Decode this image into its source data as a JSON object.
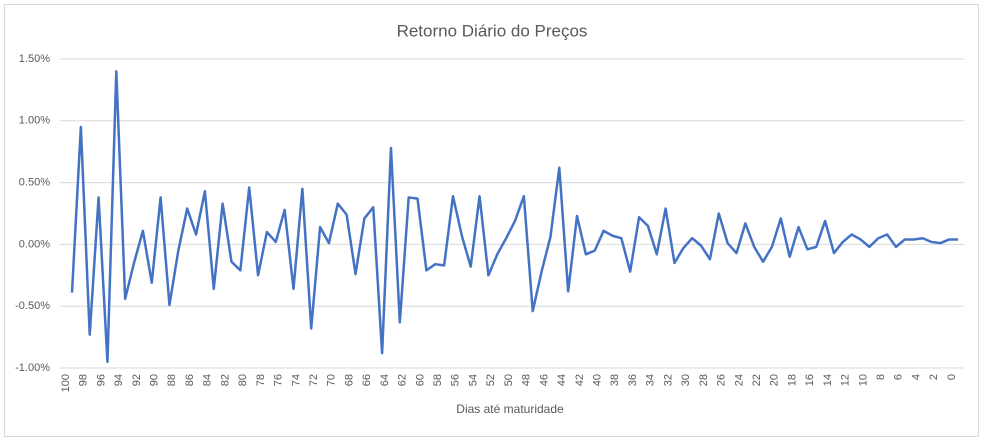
{
  "chart_data": {
    "type": "line",
    "title": "Retorno Diário do Preços",
    "x_label": "Dias até maturidade",
    "categories": [
      "100",
      null,
      "98",
      null,
      "96",
      null,
      "94",
      null,
      "92",
      null,
      "90",
      null,
      "88",
      null,
      "86",
      null,
      "84",
      null,
      "82",
      null,
      "80",
      null,
      "78",
      null,
      "76",
      null,
      "74",
      null,
      "72",
      null,
      "70",
      null,
      "68",
      null,
      "66",
      null,
      "64",
      null,
      "62",
      null,
      "60",
      null,
      "58",
      null,
      "56",
      null,
      "54",
      null,
      "52",
      null,
      "50",
      null,
      "48",
      null,
      "46",
      null,
      "44",
      null,
      "42",
      null,
      "40",
      null,
      "38",
      null,
      "36",
      null,
      "34",
      null,
      "32",
      null,
      "30",
      null,
      "28",
      null,
      "26",
      null,
      "24",
      null,
      "22",
      null,
      "20",
      null,
      "18",
      null,
      "16",
      null,
      "14",
      null,
      "12",
      null,
      "10",
      null,
      "8",
      null,
      "6",
      null,
      "4",
      null,
      "2",
      null,
      "0"
    ],
    "values": [
      -0.39,
      0.95,
      -0.73,
      0.38,
      -0.95,
      1.4,
      -0.44,
      -0.15,
      0.11,
      -0.31,
      0.38,
      -0.49,
      -0.05,
      0.29,
      0.08,
      0.43,
      -0.36,
      0.33,
      -0.14,
      -0.21,
      0.46,
      -0.25,
      0.1,
      0.02,
      0.28,
      -0.36,
      0.45,
      -0.68,
      0.14,
      0.01,
      0.33,
      0.24,
      -0.24,
      0.21,
      0.3,
      -0.88,
      0.78,
      -0.63,
      0.38,
      0.37,
      -0.21,
      -0.16,
      -0.17,
      0.39,
      0.07,
      -0.18,
      0.39,
      -0.25,
      -0.08,
      0.05,
      0.19,
      0.39,
      -0.54,
      -0.22,
      0.06,
      0.62,
      -0.38,
      0.23,
      -0.08,
      -0.05,
      0.11,
      0.07,
      0.05,
      -0.22,
      0.22,
      0.15,
      -0.08,
      0.29,
      -0.15,
      -0.03,
      0.05,
      -0.01,
      -0.12,
      0.25,
      0.01,
      -0.07,
      0.17,
      -0.02,
      -0.14,
      -0.02,
      0.21,
      -0.1,
      0.14,
      -0.04,
      -0.02,
      0.19,
      -0.07,
      0.02,
      0.08,
      0.04,
      -0.02,
      0.05,
      0.08,
      -0.02,
      0.04,
      0.04,
      0.05,
      0.02,
      0.01,
      0.04,
      0.04
    ],
    "color": "#4472c4",
    "ylim": [
      -1.0,
      1.5
    ],
    "yticks": [
      {
        "value": -1.0,
        "label": "-1.00%"
      },
      {
        "value": -0.5,
        "label": "-0.50%"
      },
      {
        "value": 0,
        "label": "0.00%"
      },
      {
        "value": 0.5,
        "label": "0.50%"
      },
      {
        "value": 1.0,
        "label": "1.00%"
      },
      {
        "value": 1.5,
        "label": "1.50%"
      }
    ],
    "grid": true
  }
}
